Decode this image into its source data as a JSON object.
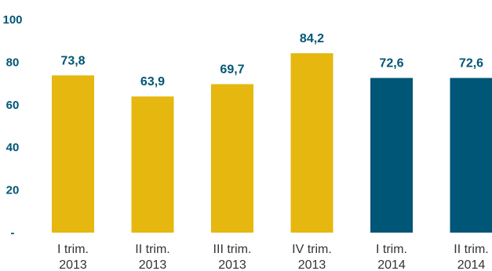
{
  "chart_data": {
    "type": "bar",
    "categories": [
      [
        "I trim.",
        "2013"
      ],
      [
        "II trim.",
        "2013"
      ],
      [
        "III trim.",
        "2013"
      ],
      [
        "IV trim.",
        "2013"
      ],
      [
        "I trim.",
        "2014"
      ],
      [
        "II trim.",
        "2014"
      ]
    ],
    "values": [
      73.8,
      63.9,
      69.7,
      84.2,
      72.6,
      72.6
    ],
    "data_labels": [
      "73,8",
      "63,9",
      "69,7",
      "84,2",
      "72,6",
      "72,6"
    ],
    "bar_colors": [
      "#e6b70f",
      "#e6b70f",
      "#e6b70f",
      "#e6b70f",
      "#005676",
      "#005676"
    ],
    "y_tick_labels": [
      "-",
      "20",
      "40",
      "60",
      "80",
      "100"
    ],
    "y_tick_values": [
      0,
      20,
      40,
      60,
      80,
      100
    ],
    "ylim": [
      0,
      100
    ],
    "grid": false,
    "title": "",
    "xlabel": "",
    "ylabel": "",
    "label_color": "#005676"
  }
}
